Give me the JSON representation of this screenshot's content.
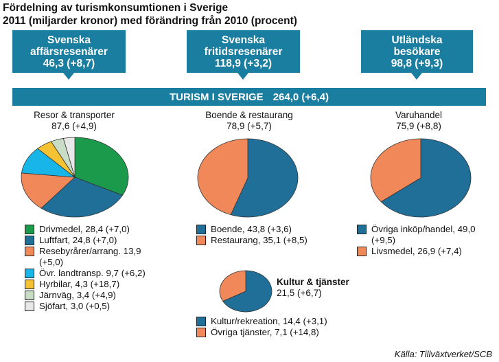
{
  "title_line1": "Fördelning av turismkonsumtionen i Sverige",
  "title_line2": "2011 (miljarder kronor) med förändring från 2010 (procent)",
  "top_boxes": [
    {
      "name1": "Svenska",
      "name2": "affärsresenärer",
      "value": "46,3 (+8,7)"
    },
    {
      "name1": "Svenska",
      "name2": "fritidsresenärer",
      "value": "118,9 (+3,2)"
    },
    {
      "name1": "Utländska",
      "name2": "besökare",
      "value": "98,8 (+9,3)"
    }
  ],
  "total_bar": {
    "label": "TURISM I SVERIGE",
    "value": "264,0 (+6,4)"
  },
  "source": "Källa: Tillväxtverket/SCB",
  "colors": {
    "blue": "#1a7ea1",
    "green": "#1a9a4a",
    "darkblue": "#1f6f99",
    "orange": "#f0885a",
    "cyan": "#18b6e8",
    "yellow": "#f5c233",
    "lightgreen": "#c9ddc6",
    "lightgray": "#e8e8e8"
  },
  "chart_data": [
    {
      "type": "pie",
      "title": "Resor & transporter",
      "subtitle": "87,6 (+4,9)",
      "slices": [
        {
          "label": "Drivmedel, 28,4 (+7,0)",
          "value": 28.4,
          "color": "#1a9a4a"
        },
        {
          "label": "Luftfart, 24,8 (+7,0)",
          "value": 24.8,
          "color": "#1f6f99"
        },
        {
          "label": "Resebyrårer/arrang. 13,9 (+5,0)",
          "value": 13.9,
          "color": "#f0885a"
        },
        {
          "label": "Övr. landtransp. 9,7 (+6,2)",
          "value": 9.7,
          "color": "#18b6e8"
        },
        {
          "label": "Hyrbilar, 4,3 (+18,7)",
          "value": 4.3,
          "color": "#f5c233"
        },
        {
          "label": "Järnväg, 3,4 (+4,9)",
          "value": 3.4,
          "color": "#c9ddc6"
        },
        {
          "label": "Sjöfart, 3,0 (+0,5)",
          "value": 3.0,
          "color": "#e8e8e8"
        }
      ]
    },
    {
      "type": "pie",
      "title": "Boende & restaurang",
      "subtitle": "78,9 (+5,7)",
      "slices": [
        {
          "label": "Boende, 43,8 (+3,6)",
          "value": 43.8,
          "color": "#1f6f99"
        },
        {
          "label": "Restaurang, 35,1 (+8,5)",
          "value": 35.1,
          "color": "#f0885a"
        }
      ]
    },
    {
      "type": "pie",
      "title": "Varuhandel",
      "subtitle": "75,9 (+8,8)",
      "slices": [
        {
          "label": "Övriga inköp/handel, 49,0 (+9,5)",
          "value": 49.0,
          "color": "#1f6f99"
        },
        {
          "label": "Livsmedel, 26,9 (+7,4)",
          "value": 26.9,
          "color": "#f0885a"
        }
      ]
    },
    {
      "type": "pie",
      "title": "Kultur & tjänster",
      "subtitle": "21,5 (+6,7)",
      "slices": [
        {
          "label": "Kultur/rekreation, 14,4 (+3,1)",
          "value": 14.4,
          "color": "#1f6f99"
        },
        {
          "label": "Övriga tjänster, 7,1 (+14,8)",
          "value": 7.1,
          "color": "#f0885a"
        }
      ]
    }
  ]
}
